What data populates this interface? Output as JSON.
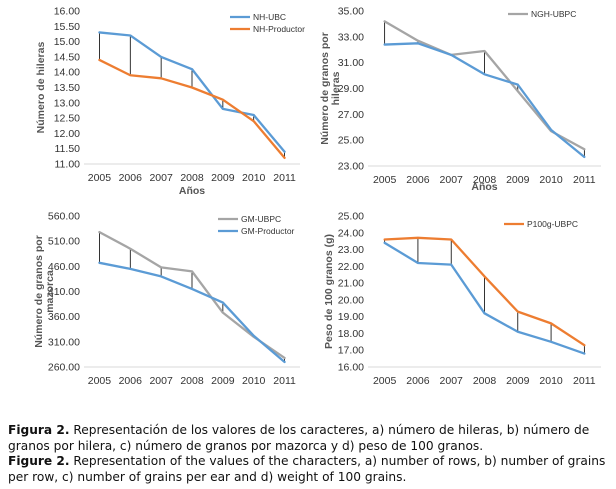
{
  "chart_data": [
    {
      "type": "line",
      "categories": [
        "2005",
        "2006",
        "2007",
        "2008",
        "2009",
        "2010",
        "2011"
      ],
      "ylabel": "Número de hileras",
      "xlabel": "Años",
      "ylim": [
        11.0,
        16.0
      ],
      "yticks": [
        "11.00",
        "11.50",
        "12.00",
        "12.50",
        "13.00",
        "13.50",
        "14.00",
        "14.50",
        "15.00",
        "15.50",
        "16.00"
      ],
      "series": [
        {
          "name": "NH-UBC",
          "color": "#5B9BD5",
          "values": [
            15.3,
            15.2,
            14.5,
            14.1,
            12.8,
            12.6,
            11.4
          ]
        },
        {
          "name": "NH-Productor",
          "color": "#ED7D31",
          "values": [
            14.4,
            13.9,
            13.8,
            13.5,
            13.1,
            12.4,
            11.2
          ]
        }
      ],
      "drop_lines": true,
      "legend": "top-right"
    },
    {
      "type": "line",
      "categories": [
        "2005",
        "2006",
        "2007",
        "2008",
        "2009",
        "2010",
        "2011"
      ],
      "ylabel": "Número de granos por hileras",
      "xlabel": "Años",
      "ylim": [
        23.0,
        35.0
      ],
      "yticks": [
        "23.00",
        "25.00",
        "27.00",
        "29.00",
        "31.00",
        "33.00",
        "35.00"
      ],
      "series": [
        {
          "name": "NGH-UBPC",
          "color": "#A5A5A5",
          "values": [
            34.2,
            32.7,
            31.6,
            31.9,
            28.8,
            25.7,
            24.3
          ]
        },
        {
          "name": "",
          "color": "#5B9BD5",
          "values": [
            32.4,
            32.5,
            31.6,
            30.1,
            29.3,
            25.8,
            23.7
          ]
        }
      ],
      "drop_lines": true,
      "legend": "top-right"
    },
    {
      "type": "line",
      "categories": [
        "2005",
        "2006",
        "2007",
        "2008",
        "2009",
        "2010",
        "2011"
      ],
      "ylabel": "Número de granos por mazorca",
      "xlabel": "",
      "ylim": [
        260,
        560
      ],
      "yticks": [
        "260.00",
        "310.00",
        "360.00",
        "410.00",
        "460.00",
        "510.00",
        "560.00"
      ],
      "series": [
        {
          "name": "GM-UBPC",
          "color": "#A5A5A5",
          "values": [
            528,
            495,
            458,
            450,
            368,
            320,
            278
          ]
        },
        {
          "name": "GM-Productor",
          "color": "#5B9BD5",
          "values": [
            467,
            455,
            440,
            415,
            388,
            322,
            270
          ]
        }
      ],
      "drop_lines": true,
      "legend": "top-right"
    },
    {
      "type": "line",
      "categories": [
        "2005",
        "2006",
        "2007",
        "2008",
        "2009",
        "2010",
        "2011"
      ],
      "ylabel": "Peso de 100 granos (g)",
      "xlabel": "",
      "ylim": [
        16.0,
        25.0
      ],
      "yticks": [
        "16.00",
        "17.00",
        "18.00",
        "19.00",
        "20.00",
        "21.00",
        "22.00",
        "23.00",
        "24.00",
        "25.00"
      ],
      "series": [
        {
          "name": "P100g-UBPC",
          "color": "#ED7D31",
          "values": [
            23.6,
            23.7,
            23.6,
            21.4,
            19.3,
            18.6,
            17.3
          ]
        },
        {
          "name": "",
          "color": "#5B9BD5",
          "values": [
            23.4,
            22.2,
            22.1,
            19.2,
            18.1,
            17.5,
            16.8
          ]
        }
      ],
      "drop_lines": true,
      "legend": "top-right"
    }
  ],
  "caption": {
    "es_label": "Figura 2.",
    "es_text": " Representación de los valores de los caracteres, a) número de hileras, b) número de granos por hilera, c) número de granos por mazorca y d) peso de 100 granos.",
    "en_label": "Figure 2.",
    "en_text": " Representation of the values of the characters, a) number of rows, b) number of grains per row, c) number of grains per ear and d) weight of 100 grains."
  }
}
